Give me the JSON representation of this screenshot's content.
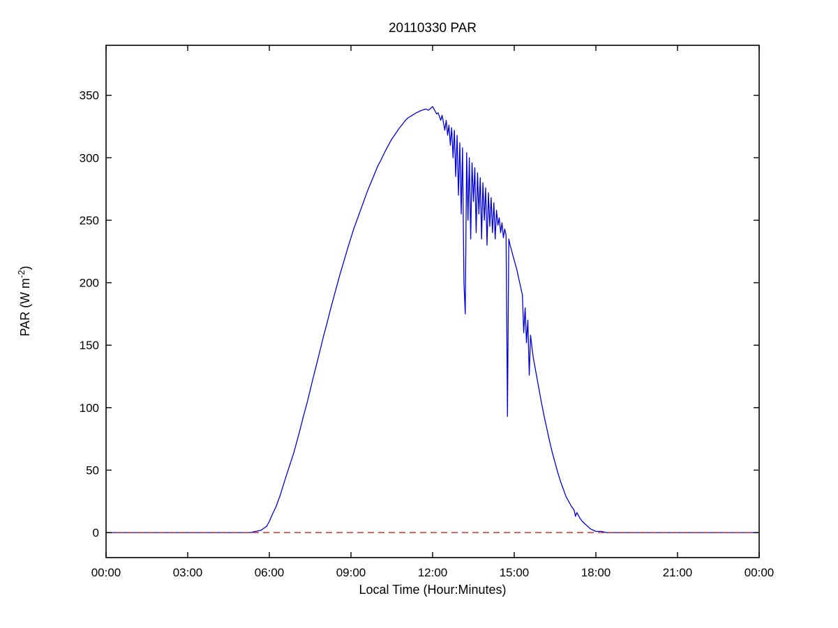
{
  "window": {
    "background": "#ffffff"
  },
  "chart_data": {
    "type": "line",
    "title": "20110330 PAR",
    "xlabel": "Local Time (Hour:Minutes)",
    "ylabel": "PAR (W m^-2)",
    "ylabel_parts": {
      "pre": "PAR (W m",
      "sup": "-2",
      "post": ")"
    },
    "xlim": [
      0,
      24
    ],
    "ylim": [
      -20,
      390
    ],
    "x_ticks": [
      0,
      3,
      6,
      9,
      12,
      15,
      18,
      21,
      24
    ],
    "x_tick_labels": [
      "00:00",
      "03:00",
      "06:00",
      "09:00",
      "12:00",
      "15:00",
      "18:00",
      "21:00",
      "00:00"
    ],
    "y_ticks": [
      0,
      50,
      100,
      150,
      200,
      250,
      300,
      350
    ],
    "grid": false,
    "legend": "none",
    "axis_color": "#000000",
    "series": [
      {
        "name": "par-line",
        "label": "PAR",
        "color": "#0000dd",
        "style": "solid",
        "width": 1.3,
        "points": [
          [
            0,
            0
          ],
          [
            0.5,
            0
          ],
          [
            1,
            0
          ],
          [
            1.5,
            0
          ],
          [
            2,
            0
          ],
          [
            2.5,
            0
          ],
          [
            3,
            0
          ],
          [
            3.5,
            0
          ],
          [
            4,
            0
          ],
          [
            4.5,
            0
          ],
          [
            5,
            0
          ],
          [
            5.3,
            0
          ],
          [
            5.5,
            1
          ],
          [
            5.7,
            2
          ],
          [
            5.9,
            5
          ],
          [
            6.0,
            9
          ],
          [
            6.1,
            14
          ],
          [
            6.25,
            21
          ],
          [
            6.4,
            30
          ],
          [
            6.5,
            37
          ],
          [
            6.6,
            44
          ],
          [
            6.75,
            54
          ],
          [
            6.9,
            64
          ],
          [
            7.0,
            72
          ],
          [
            7.1,
            80
          ],
          [
            7.25,
            93
          ],
          [
            7.4,
            105
          ],
          [
            7.5,
            114
          ],
          [
            7.6,
            123
          ],
          [
            7.75,
            136
          ],
          [
            7.9,
            149
          ],
          [
            8.0,
            158
          ],
          [
            8.1,
            166
          ],
          [
            8.25,
            179
          ],
          [
            8.4,
            191
          ],
          [
            8.5,
            199
          ],
          [
            8.6,
            207
          ],
          [
            8.75,
            218
          ],
          [
            8.9,
            229
          ],
          [
            9.0,
            236
          ],
          [
            9.1,
            243
          ],
          [
            9.25,
            252
          ],
          [
            9.4,
            261
          ],
          [
            9.5,
            267
          ],
          [
            9.6,
            273
          ],
          [
            9.75,
            281
          ],
          [
            9.9,
            289
          ],
          [
            10.0,
            294
          ],
          [
            10.1,
            298
          ],
          [
            10.25,
            305
          ],
          [
            10.4,
            311
          ],
          [
            10.5,
            315
          ],
          [
            10.6,
            318
          ],
          [
            10.75,
            323
          ],
          [
            10.9,
            327
          ],
          [
            11.0,
            330
          ],
          [
            11.1,
            332
          ],
          [
            11.25,
            334
          ],
          [
            11.4,
            336
          ],
          [
            11.5,
            337
          ],
          [
            11.6,
            338
          ],
          [
            11.75,
            339
          ],
          [
            11.85,
            338
          ],
          [
            11.95,
            340
          ],
          [
            12.0,
            341
          ],
          [
            12.05,
            339
          ],
          [
            12.1,
            337
          ],
          [
            12.15,
            335
          ],
          [
            12.2,
            336
          ],
          [
            12.25,
            333
          ],
          [
            12.3,
            330
          ],
          [
            12.35,
            334
          ],
          [
            12.4,
            328
          ],
          [
            12.45,
            322
          ],
          [
            12.5,
            330
          ],
          [
            12.55,
            318
          ],
          [
            12.6,
            326
          ],
          [
            12.65,
            310
          ],
          [
            12.7,
            324
          ],
          [
            12.75,
            300
          ],
          [
            12.8,
            322
          ],
          [
            12.85,
            285
          ],
          [
            12.9,
            318
          ],
          [
            12.95,
            270
          ],
          [
            13.0,
            312
          ],
          [
            13.05,
            255
          ],
          [
            13.1,
            308
          ],
          [
            13.15,
            200
          ],
          [
            13.2,
            175
          ],
          [
            13.25,
            304
          ],
          [
            13.3,
            250
          ],
          [
            13.35,
            300
          ],
          [
            13.4,
            235
          ],
          [
            13.45,
            296
          ],
          [
            13.5,
            265
          ],
          [
            13.55,
            292
          ],
          [
            13.6,
            240
          ],
          [
            13.65,
            288
          ],
          [
            13.7,
            255
          ],
          [
            13.75,
            284
          ],
          [
            13.8,
            235
          ],
          [
            13.85,
            280
          ],
          [
            13.9,
            250
          ],
          [
            13.95,
            276
          ],
          [
            14.0,
            230
          ],
          [
            14.05,
            272
          ],
          [
            14.1,
            245
          ],
          [
            14.15,
            268
          ],
          [
            14.2,
            240
          ],
          [
            14.25,
            264
          ],
          [
            14.3,
            235
          ],
          [
            14.35,
            258
          ],
          [
            14.4,
            246
          ],
          [
            14.45,
            252
          ],
          [
            14.5,
            240
          ],
          [
            14.55,
            248
          ],
          [
            14.6,
            236
          ],
          [
            14.65,
            243
          ],
          [
            14.7,
            238
          ],
          [
            14.75,
            93
          ],
          [
            14.8,
            235
          ],
          [
            14.85,
            230
          ],
          [
            14.9,
            226
          ],
          [
            14.95,
            222
          ],
          [
            15.0,
            218
          ],
          [
            15.1,
            210
          ],
          [
            15.2,
            200
          ],
          [
            15.3,
            190
          ],
          [
            15.35,
            160
          ],
          [
            15.4,
            180
          ],
          [
            15.45,
            152
          ],
          [
            15.5,
            170
          ],
          [
            15.55,
            126
          ],
          [
            15.6,
            158
          ],
          [
            15.65,
            148
          ],
          [
            15.7,
            140
          ],
          [
            15.8,
            128
          ],
          [
            15.9,
            116
          ],
          [
            16.0,
            104
          ],
          [
            16.1,
            93
          ],
          [
            16.2,
            83
          ],
          [
            16.3,
            73
          ],
          [
            16.4,
            64
          ],
          [
            16.5,
            56
          ],
          [
            16.6,
            48
          ],
          [
            16.7,
            41
          ],
          [
            16.8,
            35
          ],
          [
            16.9,
            29
          ],
          [
            17.0,
            25
          ],
          [
            17.1,
            21
          ],
          [
            17.2,
            18
          ],
          [
            17.25,
            13
          ],
          [
            17.3,
            16
          ],
          [
            17.4,
            12
          ],
          [
            17.5,
            9
          ],
          [
            17.6,
            7
          ],
          [
            17.7,
            5
          ],
          [
            17.8,
            3
          ],
          [
            17.9,
            2
          ],
          [
            18.0,
            1
          ],
          [
            18.2,
            1
          ],
          [
            18.4,
            0
          ],
          [
            19,
            0
          ],
          [
            20,
            0
          ],
          [
            21,
            0
          ],
          [
            22,
            0
          ],
          [
            23,
            0
          ],
          [
            24,
            0
          ]
        ]
      },
      {
        "name": "zero-reference-line",
        "label": "zero line",
        "color": "#cc2222",
        "style": "dashed",
        "width": 1.4,
        "points": [
          [
            0,
            0
          ],
          [
            24,
            0
          ]
        ]
      }
    ]
  }
}
